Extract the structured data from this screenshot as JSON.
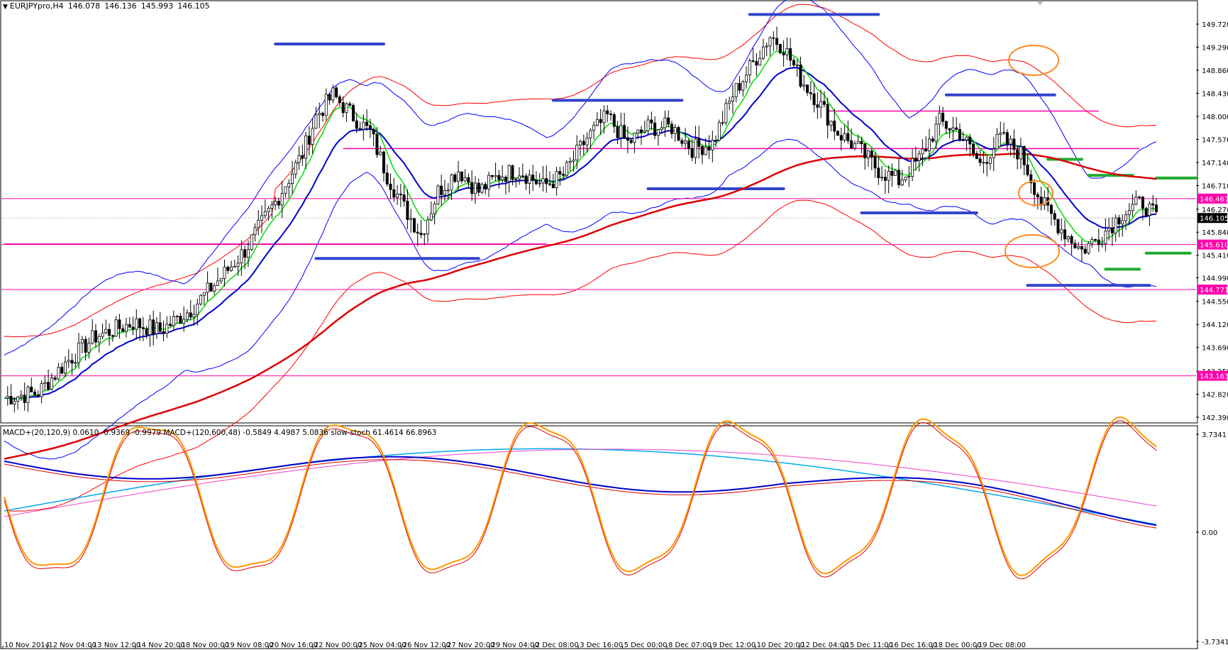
{
  "header": {
    "symbol": "EURJPYpro,H4",
    "open": "146.078",
    "high": "146.136",
    "low": "145.993",
    "close": "146.105"
  },
  "indicators_label": "MACD+(20,120,9) 0.0610 -0.9369 -0.9979  MACD+(120,600,48) -0.5849 4.4987 5.0836  slow-stoch 61.4614 66.8963",
  "colors": {
    "bull_body": "#ffffff",
    "bear_body": "#000000",
    "wick": "#000000",
    "bollinger": "#0000ff",
    "envelope": "#ff0000",
    "ma_green": "#00dd00",
    "ma_blue": "#0000cc",
    "ma_red": "#dd0000",
    "hline": "#ff00aa",
    "support_mark": "#3344cc",
    "green_mark": "#22aa33",
    "highlight": "#ff8a22",
    "macd_cyan": "#00aaee",
    "macd_magenta": "#ee44cc",
    "stoch_orange": "#ff9900"
  },
  "price_axis": {
    "labels": [
      "149.720",
      "149.290",
      "148.860",
      "148.430",
      "148.000",
      "147.570",
      "147.140",
      "146.710",
      "146.270",
      "145.840",
      "145.410",
      "144.990",
      "144.550",
      "144.120",
      "143.690",
      "143.250",
      "142.820",
      "142.390"
    ],
    "min": 142.39,
    "max": 149.72
  },
  "price_tags": [
    {
      "value": "146.467",
      "price": 146.467,
      "type": "hline"
    },
    {
      "value": "146.105",
      "price": 146.105,
      "type": "current"
    },
    {
      "value": "145.610",
      "price": 145.61,
      "type": "hline"
    },
    {
      "value": "144.771",
      "price": 144.771,
      "type": "hline"
    },
    {
      "value": "143.163",
      "price": 143.163,
      "type": "hline"
    }
  ],
  "indicator_axis": {
    "labels": [
      "3.7341",
      "0.00",
      "-3.7341"
    ]
  },
  "time_axis": {
    "labels": [
      "10 Nov 2014",
      "12 Nov 04:00",
      "13 Nov 12:00",
      "14 Nov 20:00",
      "18 Nov 00:00",
      "19 Nov 08:00",
      "20 Nov 16:00",
      "22 Nov 00:00",
      "25 Nov 04:00",
      "26 Nov 12:00",
      "27 Nov 20:00",
      "29 Nov 04:00",
      "2 Dec 08:00",
      "3 Dec 16:00",
      "5 Dec 00:00",
      "8 Dec 07:00",
      "9 Dec 12:00",
      "10 Dec 20:00",
      "12 Dec 04:00",
      "15 Dec 11:00",
      "16 Dec 16:00",
      "18 Dec 00:00",
      "19 Dec 08:00"
    ]
  },
  "chart_data": {
    "type": "candlestick",
    "title": "EURJPYpro,H4",
    "ylim": [
      142.39,
      149.72
    ],
    "x_ticks": [
      "10 Nov 2014",
      "12 Nov 04:00",
      "13 Nov 12:00",
      "14 Nov 20:00",
      "18 Nov 00:00",
      "19 Nov 08:00",
      "20 Nov 16:00",
      "22 Nov 00:00",
      "25 Nov 04:00",
      "26 Nov 12:00",
      "27 Nov 20:00",
      "29 Nov 04:00",
      "2 Dec 08:00",
      "3 Dec 16:00",
      "5 Dec 00:00",
      "8 Dec 07:00",
      "9 Dec 12:00",
      "10 Dec 20:00",
      "12 Dec 04:00",
      "15 Dec 11:00",
      "16 Dec 16:00",
      "18 Dec 00:00",
      "19 Dec 08:00"
    ],
    "close_path": [
      [
        0,
        142.75
      ],
      [
        10,
        142.85
      ],
      [
        18,
        143.4
      ],
      [
        27,
        143.9
      ],
      [
        38,
        144.15
      ],
      [
        46,
        144.0
      ],
      [
        55,
        144.4
      ],
      [
        64,
        145.0
      ],
      [
        71,
        145.5
      ],
      [
        80,
        146.4
      ],
      [
        88,
        147.3
      ],
      [
        92,
        148.0
      ],
      [
        97,
        148.4
      ],
      [
        103,
        148.0
      ],
      [
        108,
        147.7
      ],
      [
        113,
        146.9
      ],
      [
        118,
        146.3
      ],
      [
        123,
        145.8
      ],
      [
        128,
        146.6
      ],
      [
        134,
        147.0
      ],
      [
        140,
        146.6
      ],
      [
        146,
        146.9
      ],
      [
        152,
        147.0
      ],
      [
        159,
        146.7
      ],
      [
        165,
        146.9
      ],
      [
        172,
        147.6
      ],
      [
        178,
        148.0
      ],
      [
        184,
        147.5
      ],
      [
        190,
        147.8
      ],
      [
        197,
        147.8
      ],
      [
        203,
        147.4
      ],
      [
        209,
        147.5
      ],
      [
        215,
        148.4
      ],
      [
        221,
        149.0
      ],
      [
        226,
        149.5
      ],
      [
        230,
        149.3
      ],
      [
        235,
        148.7
      ],
      [
        240,
        148.3
      ],
      [
        246,
        147.7
      ],
      [
        252,
        147.4
      ],
      [
        258,
        147.0
      ],
      [
        264,
        146.8
      ],
      [
        270,
        147.2
      ],
      [
        276,
        147.9
      ],
      [
        282,
        147.7
      ],
      [
        288,
        147.1
      ],
      [
        294,
        147.6
      ],
      [
        300,
        147.3
      ],
      [
        306,
        146.4
      ],
      [
        312,
        145.9
      ],
      [
        318,
        145.5
      ],
      [
        324,
        145.8
      ],
      [
        330,
        146.2
      ],
      [
        336,
        146.4
      ],
      [
        340,
        146.1
      ]
    ],
    "h_lines": [
      146.467,
      145.61,
      144.771,
      143.163
    ],
    "current_price": 146.105,
    "indicator_range": [
      -3.7341,
      3.7341
    ]
  }
}
